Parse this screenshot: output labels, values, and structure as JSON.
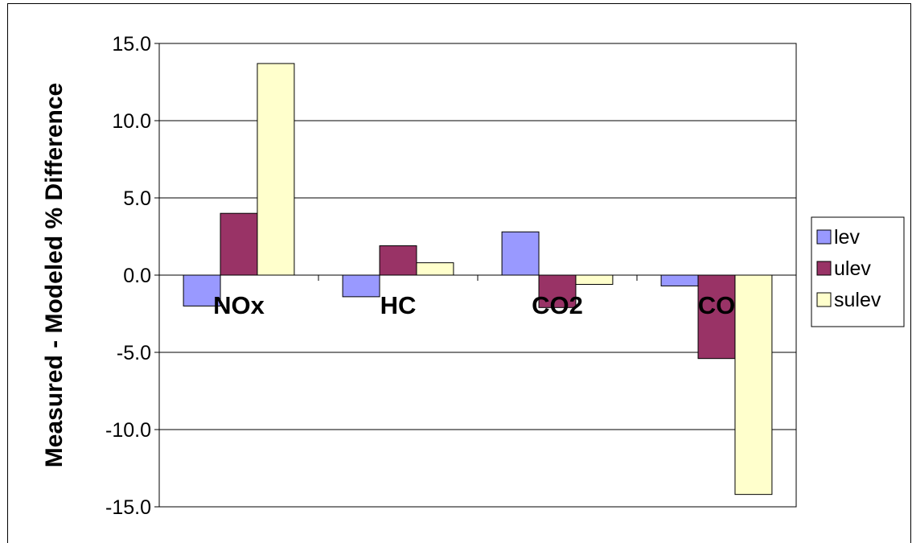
{
  "chart_data": {
    "type": "bar",
    "ylabel": "Measured - Modeled % Difference",
    "categories": [
      "NOx",
      "HC",
      "CO2",
      "CO"
    ],
    "series": [
      {
        "name": "lev",
        "values": [
          -2.0,
          -1.4,
          2.8,
          -0.7
        ],
        "color": "#9999FF"
      },
      {
        "name": "ulev",
        "values": [
          4.0,
          1.9,
          -2.1,
          -5.4
        ],
        "color": "#993366"
      },
      {
        "name": "sulev",
        "values": [
          13.7,
          0.8,
          -0.6,
          -14.2
        ],
        "color": "#FFFFCC"
      }
    ],
    "ylim": [
      -15,
      15
    ],
    "yticks": [
      "15.0",
      "10.0",
      "5.0",
      "0.0",
      "-5.0",
      "-10.0",
      "-15.0"
    ],
    "grid": true,
    "legend_position": "right"
  }
}
